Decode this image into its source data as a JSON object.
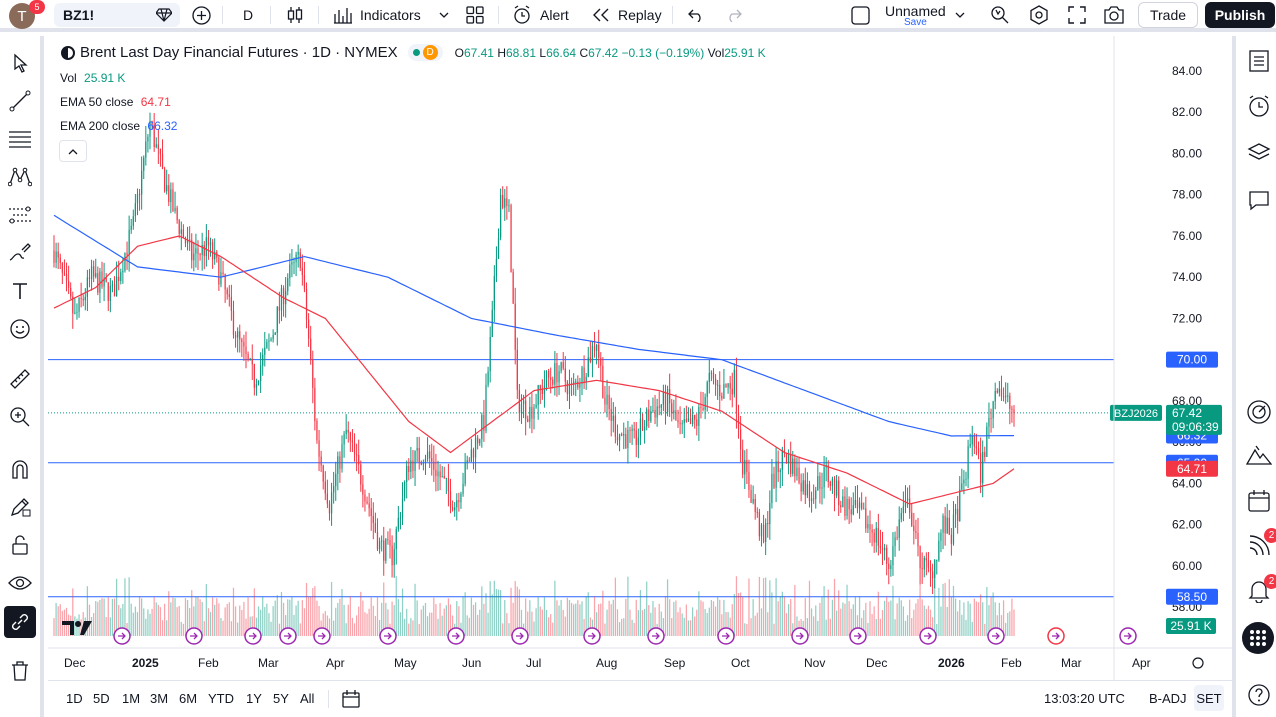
{
  "topbar": {
    "avatar_letter": "T",
    "notif_count": "5",
    "symbol": "BZ1!",
    "interval": "D",
    "indicators": "Indicators",
    "alert": "Alert",
    "replay": "Replay",
    "layout_name": "Unnamed",
    "layout_save": "Save",
    "trade": "Trade",
    "publish": "Publish"
  },
  "legend": {
    "title": "Brent Last Day Financial Futures · 1D · NYMEX",
    "market_badge": "D",
    "o_label": "O",
    "o": "67.41",
    "h_label": "H",
    "h": "68.81",
    "l_label": "L",
    "l": "66.64",
    "c_label": "C",
    "c": "67.42",
    "change": "−0.13 (−0.19%)",
    "vol_label": "Vol",
    "vol": "25.91 K"
  },
  "indicators": [
    {
      "label": "Vol",
      "value": "25.91 K",
      "color": "#089981"
    },
    {
      "label": "EMA 50 close",
      "value": "64.71",
      "color": "#f23645"
    },
    {
      "label": "EMA 200 close",
      "value": "66.32",
      "color": "#2962ff"
    }
  ],
  "colors": {
    "up": "#089981",
    "down": "#f23645",
    "ema50": "#f23645",
    "ema200": "#2962ff",
    "hline": "#2962ff"
  },
  "chart_data": {
    "type": "candlestick",
    "y_ticks": [
      "84.00",
      "82.00",
      "80.00",
      "78.00",
      "76.00",
      "74.00",
      "72.00",
      "70.00",
      "68.00",
      "66.00",
      "64.00",
      "62.00",
      "60.00",
      "58.00"
    ],
    "ylim": [
      57.8,
      85.0
    ],
    "x_labels": [
      "Dec",
      "2025",
      "Feb",
      "Mar",
      "Apr",
      "May",
      "Jun",
      "Jul",
      "Aug",
      "Sep",
      "Oct",
      "Nov",
      "Dec",
      "2026",
      "Feb",
      "Mar",
      "Apr"
    ],
    "horizontal_lines": [
      70.0,
      65.0,
      58.5
    ],
    "price_tags": [
      {
        "label": "70.00",
        "value": 70.0,
        "color": "#2962ff"
      },
      {
        "label": "66.32",
        "value": 66.32,
        "color": "#2962ff"
      },
      {
        "label": "65.00",
        "value": 65.0,
        "color": "#2962ff"
      },
      {
        "label": "64.71",
        "value": 64.71,
        "color": "#f23645"
      },
      {
        "label": "58.50",
        "value": 58.5,
        "color": "#2962ff"
      }
    ],
    "last_price": {
      "symbol": "BZJ2026",
      "price": "67.42",
      "countdown": "09:06:39",
      "value": 67.42
    },
    "volume_tag": "25.91 K",
    "close_anchors": [
      [
        0,
        75.3
      ],
      [
        10,
        72.0
      ],
      [
        18,
        74.0
      ],
      [
        28,
        73.2
      ],
      [
        38,
        76.5
      ],
      [
        46,
        81.5
      ],
      [
        52,
        79.0
      ],
      [
        58,
        77.0
      ],
      [
        66,
        75.0
      ],
      [
        74,
        75.5
      ],
      [
        80,
        74.0
      ],
      [
        88,
        71.0
      ],
      [
        96,
        69.0
      ],
      [
        104,
        71.0
      ],
      [
        112,
        74.0
      ],
      [
        118,
        75.0
      ],
      [
        122,
        71.0
      ],
      [
        126,
        66.0
      ],
      [
        132,
        63.0
      ],
      [
        140,
        66.5
      ],
      [
        148,
        64.0
      ],
      [
        156,
        61.0
      ],
      [
        162,
        60.5
      ],
      [
        170,
        65.0
      ],
      [
        178,
        65.5
      ],
      [
        184,
        64.5
      ],
      [
        192,
        63.0
      ],
      [
        200,
        65.5
      ],
      [
        206,
        67.0
      ],
      [
        210,
        72.0
      ],
      [
        214,
        78.0
      ],
      [
        218,
        77.0
      ],
      [
        222,
        68.0
      ],
      [
        228,
        67.5
      ],
      [
        236,
        69.0
      ],
      [
        242,
        69.5
      ],
      [
        248,
        68.5
      ],
      [
        254,
        69.5
      ],
      [
        260,
        71.0
      ],
      [
        264,
        68.0
      ],
      [
        270,
        66.5
      ],
      [
        278,
        66.0
      ],
      [
        286,
        67.5
      ],
      [
        294,
        68.0
      ],
      [
        300,
        66.5
      ],
      [
        308,
        67.0
      ],
      [
        314,
        69.0
      ],
      [
        320,
        68.5
      ],
      [
        326,
        69.0
      ],
      [
        330,
        65.0
      ],
      [
        334,
        63.5
      ],
      [
        340,
        61.0
      ],
      [
        344,
        64.0
      ],
      [
        350,
        65.5
      ],
      [
        356,
        64.5
      ],
      [
        362,
        63.5
      ],
      [
        370,
        64.5
      ],
      [
        378,
        63.0
      ],
      [
        386,
        62.5
      ],
      [
        394,
        61.5
      ],
      [
        400,
        60.0
      ],
      [
        406,
        62.5
      ],
      [
        410,
        63.0
      ],
      [
        414,
        60.5
      ],
      [
        420,
        59.5
      ],
      [
        426,
        62.0
      ],
      [
        430,
        61.5
      ],
      [
        436,
        64.0
      ],
      [
        440,
        66.5
      ],
      [
        444,
        64.5
      ],
      [
        448,
        67.0
      ],
      [
        452,
        69.0
      ],
      [
        456,
        68.0
      ],
      [
        460,
        67.4
      ]
    ],
    "candle_count": 461,
    "ema200_anchors": [
      [
        0,
        77.0
      ],
      [
        40,
        74.5
      ],
      [
        80,
        74.0
      ],
      [
        120,
        75.0
      ],
      [
        160,
        74.0
      ],
      [
        200,
        72.0
      ],
      [
        240,
        71.2
      ],
      [
        280,
        70.5
      ],
      [
        320,
        70.0
      ],
      [
        360,
        68.5
      ],
      [
        400,
        67.0
      ],
      [
        430,
        66.3
      ],
      [
        460,
        66.32
      ]
    ],
    "ema50_anchors": [
      [
        0,
        72.5
      ],
      [
        20,
        73.5
      ],
      [
        40,
        75.5
      ],
      [
        60,
        76.0
      ],
      [
        80,
        75.0
      ],
      [
        110,
        73.0
      ],
      [
        130,
        72.0
      ],
      [
        150,
        69.5
      ],
      [
        170,
        67.0
      ],
      [
        190,
        65.5
      ],
      [
        210,
        67.0
      ],
      [
        230,
        68.5
      ],
      [
        260,
        69.0
      ],
      [
        290,
        68.5
      ],
      [
        320,
        67.5
      ],
      [
        350,
        65.5
      ],
      [
        380,
        64.5
      ],
      [
        410,
        63.0
      ],
      [
        430,
        63.5
      ],
      [
        450,
        64.0
      ],
      [
        460,
        64.71
      ]
    ]
  },
  "bottom": {
    "ranges": [
      "1D",
      "5D",
      "1M",
      "3M",
      "6M",
      "YTD",
      "1Y",
      "5Y",
      "All"
    ],
    "time": "13:03:20 UTC",
    "adj": "B-ADJ",
    "session": "SET"
  },
  "right_badges": {
    "feed": "2",
    "alerts": "2"
  }
}
